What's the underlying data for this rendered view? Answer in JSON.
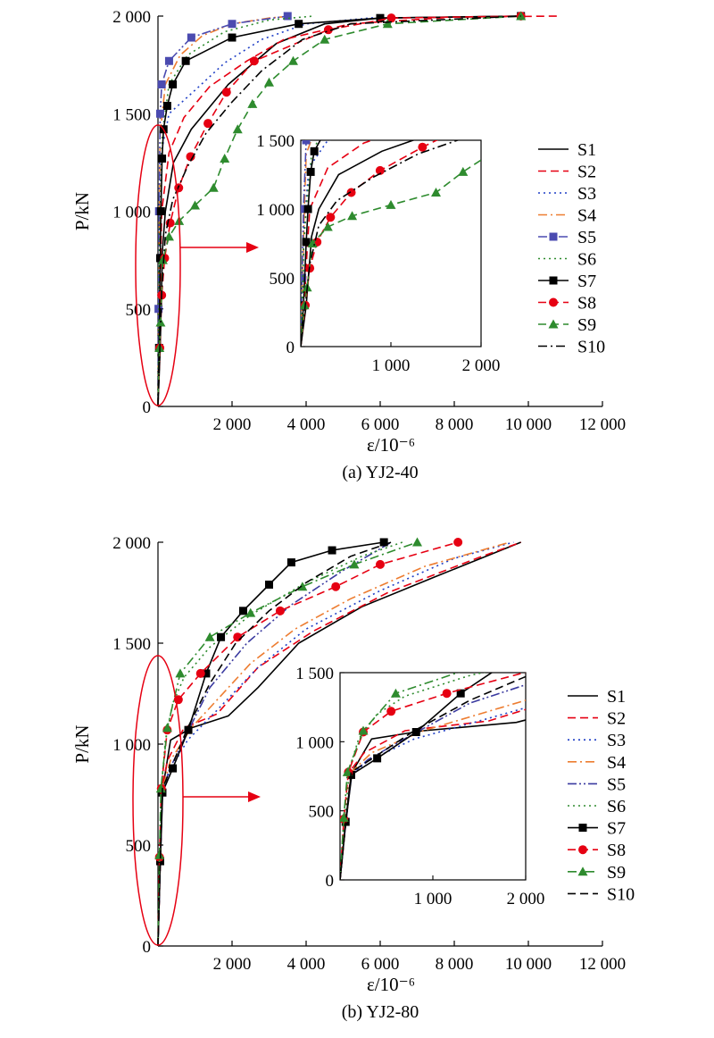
{
  "chart_data": [
    {
      "type": "line",
      "title": "(a) YJ2-40",
      "xlabel": "ε/10⁻⁶",
      "ylabel": "P/kN",
      "xlim": [
        0,
        12000
      ],
      "ylim": [
        0,
        2000
      ],
      "x_ticks": [
        "2 000",
        "4 000",
        "6 000",
        "8 000",
        "10 000",
        "12 000"
      ],
      "y_ticks": [
        "0",
        "500",
        "1 000",
        "1 500",
        "2 000"
      ],
      "legend_position": "right",
      "inset": {
        "xlim": [
          0,
          2000
        ],
        "ylim": [
          0,
          1500
        ],
        "x_ticks": [
          "1 000",
          "2 000"
        ],
        "y_ticks": [
          "0",
          "500",
          "1 000",
          "1 500"
        ]
      },
      "series": [
        {
          "name": "S1",
          "style": "solid",
          "marker": "",
          "color": "#000000",
          "points": [
            [
              0,
              0
            ],
            [
              60,
              300
            ],
            [
              120,
              800
            ],
            [
              200,
              1000
            ],
            [
              420,
              1250
            ],
            [
              900,
              1420
            ],
            [
              1900,
              1650
            ],
            [
              3200,
              1860
            ],
            [
              4500,
              1960
            ],
            [
              6000,
              1990
            ],
            [
              9800,
              2000
            ]
          ]
        },
        {
          "name": "S2",
          "style": "dash",
          "marker": "",
          "color": "#e60012",
          "points": [
            [
              0,
              0
            ],
            [
              40,
              300
            ],
            [
              70,
              700
            ],
            [
              100,
              1000
            ],
            [
              300,
              1300
            ],
            [
              700,
              1480
            ],
            [
              1400,
              1640
            ],
            [
              2400,
              1770
            ],
            [
              3400,
              1880
            ],
            [
              5200,
              1960
            ],
            [
              8000,
              1995
            ],
            [
              10800,
              2000
            ]
          ]
        },
        {
          "name": "S3",
          "style": "dot",
          "marker": "",
          "color": "#1f3fc6",
          "points": [
            [
              0,
              0
            ],
            [
              20,
              400
            ],
            [
              40,
              900
            ],
            [
              90,
              1300
            ],
            [
              300,
              1500
            ],
            [
              1000,
              1620
            ],
            [
              1800,
              1760
            ],
            [
              2800,
              1880
            ],
            [
              4000,
              1960
            ],
            [
              6000,
              1995
            ]
          ]
        },
        {
          "name": "S4",
          "style": "dashdot",
          "marker": "",
          "color": "#ed7d31",
          "points": [
            [
              0,
              0
            ],
            [
              20,
              500
            ],
            [
              40,
              1000
            ],
            [
              60,
              1400
            ],
            [
              200,
              1650
            ],
            [
              600,
              1800
            ],
            [
              1200,
              1900
            ],
            [
              2000,
              1960
            ],
            [
              3000,
              1990
            ],
            [
              3600,
              2000
            ]
          ]
        },
        {
          "name": "S5",
          "style": "dashdotdot",
          "marker": "square",
          "color": "#4b4bb0",
          "points": [
            [
              0,
              0
            ],
            [
              15,
              500
            ],
            [
              30,
              1000
            ],
            [
              60,
              1500
            ],
            [
              100,
              1650
            ],
            [
              300,
              1770
            ],
            [
              900,
              1890
            ],
            [
              2000,
              1960
            ],
            [
              3500,
              2000
            ]
          ]
        },
        {
          "name": "S6",
          "style": "dot",
          "marker": "",
          "color": "#2e8b2e",
          "points": [
            [
              0,
              0
            ],
            [
              20,
              400
            ],
            [
              30,
              700
            ],
            [
              60,
              1000
            ],
            [
              120,
              1400
            ],
            [
              300,
              1650
            ],
            [
              800,
              1800
            ],
            [
              1800,
              1920
            ],
            [
              3000,
              1980
            ],
            [
              4200,
              2000
            ]
          ]
        },
        {
          "name": "S7",
          "style": "solid",
          "marker": "square",
          "color": "#000000",
          "points": [
            [
              0,
              0
            ],
            [
              30,
              300
            ],
            [
              60,
              760
            ],
            [
              80,
              1000
            ],
            [
              110,
              1270
            ],
            [
              150,
              1420
            ],
            [
              250,
              1540
            ],
            [
              400,
              1650
            ],
            [
              750,
              1770
            ],
            [
              2000,
              1890
            ],
            [
              3800,
              1960
            ],
            [
              6000,
              1990
            ],
            [
              9800,
              2000
            ]
          ]
        },
        {
          "name": "S8",
          "style": "dash",
          "marker": "circle",
          "color": "#e60012",
          "points": [
            [
              0,
              0
            ],
            [
              50,
              300
            ],
            [
              100,
              570
            ],
            [
              180,
              760
            ],
            [
              330,
              940
            ],
            [
              560,
              1120
            ],
            [
              880,
              1280
            ],
            [
              1350,
              1450
            ],
            [
              1850,
              1610
            ],
            [
              2600,
              1770
            ],
            [
              4600,
              1930
            ],
            [
              6300,
              1990
            ],
            [
              9800,
              2000
            ]
          ]
        },
        {
          "name": "S9",
          "style": "dash",
          "marker": "triangle",
          "color": "#2e8b2e",
          "points": [
            [
              0,
              0
            ],
            [
              40,
              300
            ],
            [
              70,
              430
            ],
            [
              130,
              750
            ],
            [
              300,
              870
            ],
            [
              570,
              950
            ],
            [
              1000,
              1030
            ],
            [
              1500,
              1120
            ],
            [
              1800,
              1270
            ],
            [
              2150,
              1420
            ],
            [
              2550,
              1550
            ],
            [
              3000,
              1660
            ],
            [
              3650,
              1770
            ],
            [
              4500,
              1880
            ],
            [
              6200,
              1960
            ],
            [
              9800,
              2000
            ]
          ]
        },
        {
          "name": "S10",
          "style": "dashdot",
          "marker": "",
          "color": "#000000",
          "points": [
            [
              0,
              0
            ],
            [
              50,
              300
            ],
            [
              100,
              600
            ],
            [
              200,
              880
            ],
            [
              400,
              1060
            ],
            [
              800,
              1230
            ],
            [
              1300,
              1400
            ],
            [
              2000,
              1560
            ],
            [
              2800,
              1720
            ],
            [
              3900,
              1880
            ],
            [
              5200,
              1960
            ],
            [
              9800,
              2000
            ]
          ]
        }
      ]
    },
    {
      "type": "line",
      "title": "(b) YJ2-80",
      "xlabel": "ε/10⁻⁶",
      "ylabel": "P/kN",
      "xlim": [
        0,
        12000
      ],
      "ylim": [
        0,
        2000
      ],
      "x_ticks": [
        "2 000",
        "4 000",
        "6 000",
        "8 000",
        "10 000",
        "12 000"
      ],
      "y_ticks": [
        "0",
        "500",
        "1 000",
        "1 500",
        "2 000"
      ],
      "legend_position": "right",
      "inset": {
        "xlim": [
          0,
          2000
        ],
        "ylim": [
          0,
          1500
        ],
        "x_ticks": [
          "1 000",
          "2 000"
        ],
        "y_ticks": [
          "0",
          "500",
          "1 000",
          "1 500"
        ]
      },
      "series": [
        {
          "name": "S1",
          "style": "solid",
          "marker": "",
          "color": "#000000",
          "points": [
            [
              0,
              0
            ],
            [
              60,
              400
            ],
            [
              130,
              780
            ],
            [
              340,
              1020
            ],
            [
              900,
              1080
            ],
            [
              1900,
              1140
            ],
            [
              2700,
              1280
            ],
            [
              3800,
              1500
            ],
            [
              5500,
              1680
            ],
            [
              7500,
              1830
            ],
            [
              9800,
              2000
            ]
          ]
        },
        {
          "name": "S2",
          "style": "dash",
          "marker": "",
          "color": "#e60012",
          "points": [
            [
              0,
              0
            ],
            [
              60,
              400
            ],
            [
              120,
              800
            ],
            [
              260,
              920
            ],
            [
              700,
              1080
            ],
            [
              1600,
              1150
            ],
            [
              2700,
              1380
            ],
            [
              4200,
              1560
            ],
            [
              6200,
              1750
            ],
            [
              8600,
              1920
            ],
            [
              9800,
              2000
            ]
          ]
        },
        {
          "name": "S3",
          "style": "dot",
          "marker": "",
          "color": "#1f3fc6",
          "points": [
            [
              0,
              0
            ],
            [
              60,
              400
            ],
            [
              120,
              760
            ],
            [
              300,
              860
            ],
            [
              800,
              1020
            ],
            [
              1500,
              1150
            ],
            [
              2700,
              1380
            ],
            [
              4000,
              1570
            ],
            [
              6000,
              1760
            ],
            [
              8000,
              1920
            ],
            [
              9600,
              2000
            ]
          ]
        },
        {
          "name": "S4",
          "style": "dashdot",
          "marker": "",
          "color": "#ed7d31",
          "points": [
            [
              0,
              0
            ],
            [
              60,
              400
            ],
            [
              120,
              780
            ],
            [
              340,
              920
            ],
            [
              900,
              1080
            ],
            [
              1600,
              1220
            ],
            [
              2500,
              1400
            ],
            [
              3700,
              1570
            ],
            [
              5200,
              1720
            ],
            [
              7200,
              1880
            ],
            [
              9500,
              2000
            ]
          ]
        },
        {
          "name": "S5",
          "style": "dashdotdot",
          "marker": "",
          "color": "#3a3aa0",
          "points": [
            [
              0,
              0
            ],
            [
              60,
              400
            ],
            [
              120,
              760
            ],
            [
              300,
              870
            ],
            [
              800,
              1060
            ],
            [
              1400,
              1280
            ],
            [
              2400,
              1500
            ],
            [
              3600,
              1690
            ],
            [
              5000,
              1860
            ],
            [
              6300,
              2000
            ]
          ]
        },
        {
          "name": "S6",
          "style": "dot",
          "marker": "",
          "color": "#2e8b2e",
          "points": [
            [
              0,
              0
            ],
            [
              50,
              400
            ],
            [
              100,
              800
            ],
            [
              200,
              1020
            ],
            [
              400,
              1200
            ],
            [
              700,
              1330
            ],
            [
              1400,
              1480
            ],
            [
              2500,
              1640
            ],
            [
              4000,
              1800
            ],
            [
              5500,
              1930
            ],
            [
              6600,
              2000
            ]
          ]
        },
        {
          "name": "S7",
          "style": "solid",
          "marker": "square",
          "color": "#000000",
          "points": [
            [
              0,
              0
            ],
            [
              60,
              420
            ],
            [
              120,
              760
            ],
            [
              400,
              880
            ],
            [
              820,
              1070
            ],
            [
              1300,
              1350
            ],
            [
              1700,
              1530
            ],
            [
              2300,
              1660
            ],
            [
              3000,
              1790
            ],
            [
              3600,
              1900
            ],
            [
              4700,
              1960
            ],
            [
              6100,
              2000
            ]
          ]
        },
        {
          "name": "S8",
          "style": "dash",
          "marker": "circle",
          "color": "#e60012",
          "points": [
            [
              0,
              0
            ],
            [
              40,
              440
            ],
            [
              90,
              780
            ],
            [
              250,
              1070
            ],
            [
              550,
              1220
            ],
            [
              1150,
              1350
            ],
            [
              2150,
              1530
            ],
            [
              3300,
              1660
            ],
            [
              4800,
              1780
            ],
            [
              6000,
              1890
            ],
            [
              8100,
              2000
            ]
          ]
        },
        {
          "name": "S9",
          "style": "dashdot",
          "marker": "triangle",
          "color": "#2e8b2e",
          "points": [
            [
              0,
              0
            ],
            [
              40,
              450
            ],
            [
              80,
              780
            ],
            [
              250,
              1080
            ],
            [
              600,
              1350
            ],
            [
              1400,
              1530
            ],
            [
              2500,
              1650
            ],
            [
              3900,
              1780
            ],
            [
              5300,
              1890
            ],
            [
              7000,
              2000
            ]
          ]
        },
        {
          "name": "S10",
          "style": "dash",
          "marker": "",
          "color": "#000000",
          "points": [
            [
              0,
              0
            ],
            [
              60,
              400
            ],
            [
              120,
              780
            ],
            [
              350,
              880
            ],
            [
              800,
              1080
            ],
            [
              1400,
              1300
            ],
            [
              2100,
              1500
            ],
            [
              3000,
              1660
            ],
            [
              4000,
              1800
            ],
            [
              5200,
              1930
            ],
            [
              6300,
              2000
            ]
          ]
        }
      ]
    }
  ]
}
